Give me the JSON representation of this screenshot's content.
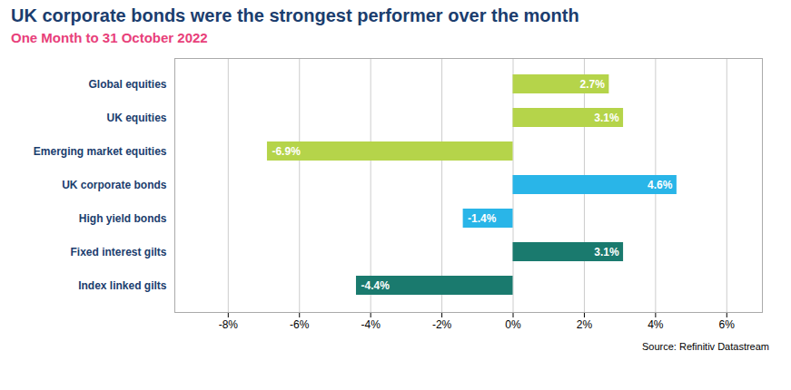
{
  "chart_data": {
    "type": "bar",
    "orientation": "horizontal",
    "title": "UK corporate bonds were the strongest performer over the month",
    "subtitle": "One Month to 31 October 2022",
    "annotations": [
      "Source: Refinitiv Datastream"
    ],
    "categories": [
      "Index linked gilts",
      "Fixed interest gilts",
      "High yield bonds",
      "UK corporate bonds",
      "Emerging market equities",
      "UK equities",
      "Global equities"
    ],
    "values": [
      -4.4,
      3.1,
      -1.4,
      4.6,
      -6.9,
      3.1,
      2.7
    ],
    "value_labels": [
      "-4.4%",
      "3.1%",
      "-1.4%",
      "4.6%",
      "-6.9%",
      "3.1%",
      "2.7%"
    ],
    "data_labels": true,
    "colors": [
      "#1a7a6e",
      "#1a7a6e",
      "#29b5e8",
      "#29b5e8",
      "#b5d44a",
      "#b5d44a",
      "#b5d44a"
    ],
    "xlim": [
      -9.5,
      7.0
    ],
    "xticks": [
      {
        "value": -8,
        "label": "-8%"
      },
      {
        "value": -6,
        "label": "-6%"
      },
      {
        "value": -4,
        "label": "-4%"
      },
      {
        "value": -2,
        "label": "-2%"
      },
      {
        "value": 0,
        "label": "0%"
      },
      {
        "value": 2,
        "label": "2%"
      },
      {
        "value": 4,
        "label": "4%"
      },
      {
        "value": 6,
        "label": "6%"
      }
    ],
    "grid": true
  }
}
